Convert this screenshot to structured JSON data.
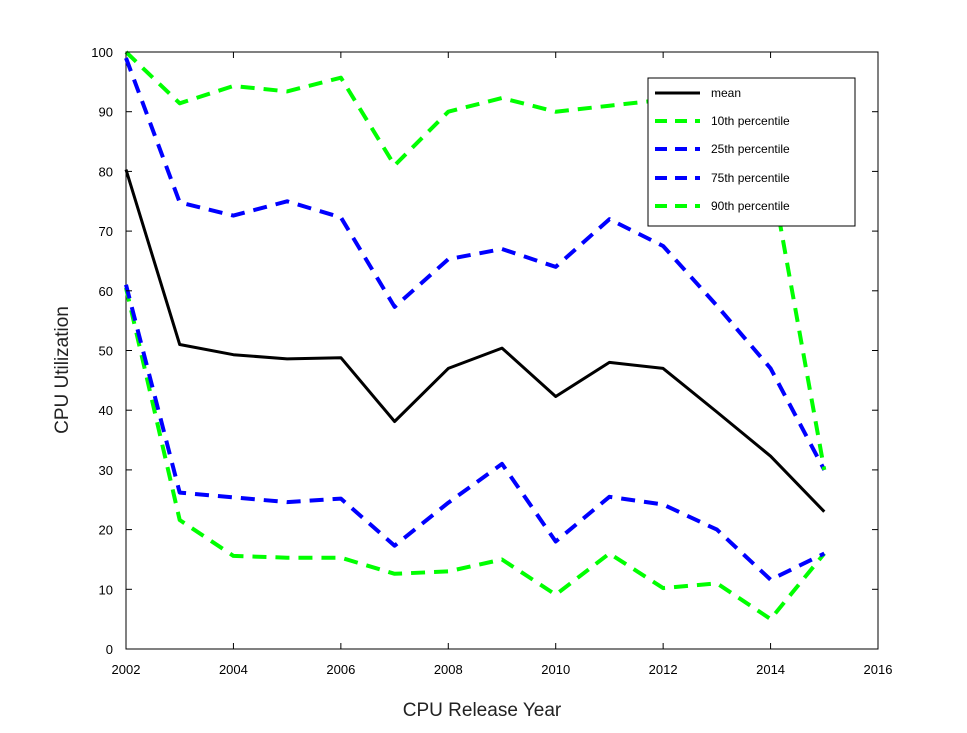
{
  "chart_data": {
    "type": "line",
    "xlabel": "CPU Release Year",
    "ylabel": "CPU Utilization",
    "xlim": [
      2002,
      2016
    ],
    "ylim": [
      0,
      100
    ],
    "xticks": [
      "2002",
      "2004",
      "2006",
      "2008",
      "2010",
      "2012",
      "2014",
      "2016"
    ],
    "yticks": [
      "0",
      "10",
      "20",
      "30",
      "40",
      "50",
      "60",
      "70",
      "80",
      "90",
      "100"
    ],
    "grid": false,
    "legend_position": "top-right",
    "x": [
      2002,
      2003,
      2004,
      2005,
      2006,
      2007,
      2008,
      2009,
      2010,
      2011,
      2012,
      2013,
      2014,
      2015
    ],
    "series": [
      {
        "name": "mean",
        "color": "#000000",
        "style": "solid",
        "values": [
          80.3,
          51.0,
          49.3,
          48.6,
          48.8,
          38.1,
          47.0,
          50.4,
          42.3,
          48.0,
          47.0,
          39.7,
          32.3,
          23.0
        ]
      },
      {
        "name": "10th percentile",
        "color": "#00ff00",
        "style": "dashed",
        "values": [
          60.5,
          21.6,
          15.6,
          15.3,
          15.3,
          12.6,
          13.0,
          15.0,
          9.1,
          16.0,
          10.2,
          11.0,
          5.0,
          16.0
        ]
      },
      {
        "name": "25th percentile",
        "color": "#0000ff",
        "style": "dashed",
        "values": [
          61.0,
          26.2,
          25.4,
          24.6,
          25.2,
          17.3,
          24.5,
          31.0,
          18.0,
          25.5,
          24.2,
          20.0,
          11.6,
          16.0
        ]
      },
      {
        "name": "75th percentile",
        "color": "#0000ff",
        "style": "dashed",
        "values": [
          99.0,
          74.8,
          72.6,
          75.0,
          72.3,
          57.3,
          65.3,
          67.0,
          64.0,
          72.0,
          67.5,
          57.5,
          47.0,
          30.0
        ]
      },
      {
        "name": "90th percentile",
        "color": "#00ff00",
        "style": "dashed",
        "values": [
          100.0,
          91.4,
          94.3,
          93.4,
          95.7,
          81.0,
          90.0,
          92.3,
          90.0,
          91.0,
          92.0,
          92.0,
          80.0,
          30.0
        ]
      }
    ]
  }
}
